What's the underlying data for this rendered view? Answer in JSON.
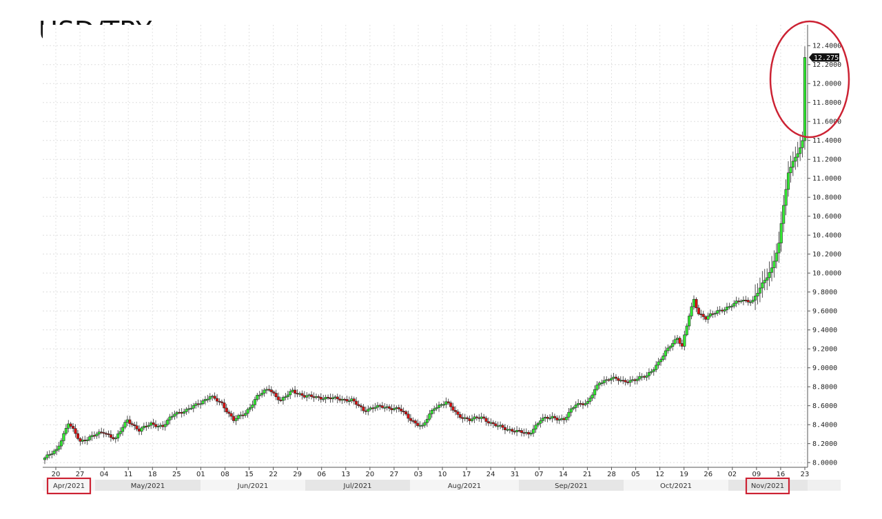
{
  "chart_data": {
    "type": "candlestick",
    "title": "USD/TRY",
    "ylim": [
      7.95,
      12.62
    ],
    "yticks": [
      "8.0000",
      "8.2000",
      "8.4000",
      "8.6000",
      "8.8000",
      "9.0000",
      "9.2000",
      "9.4000",
      "9.6000",
      "9.8000",
      "10.0000",
      "10.2000",
      "10.4000",
      "10.6000",
      "10.8000",
      "11.0000",
      "11.2000",
      "11.4000",
      "11.6000",
      "11.8000",
      "12.0000",
      "12.2000",
      "12.4000"
    ],
    "last_price_label": "12.2756",
    "x_day_ticks": [
      "20",
      "27",
      "04",
      "11",
      "18",
      "25",
      "01",
      "08",
      "15",
      "22",
      "29",
      "06",
      "13",
      "20",
      "27",
      "03",
      "10",
      "17",
      "24",
      "31",
      "07",
      "14",
      "21",
      "28",
      "05",
      "12",
      "19",
      "26",
      "02",
      "09",
      "16",
      "23"
    ],
    "months": [
      "Apr/2021",
      "May/2021",
      "Jun/2021",
      "Jul/2021",
      "Aug/2021",
      "Sep/2021",
      "Oct/2021",
      "Nov/2021"
    ],
    "highlighted_months": [
      "Apr/2021",
      "Nov/2021"
    ],
    "grid": true,
    "up_color": "#33ee33",
    "down_color": "#dd1111",
    "highlight_color": "#cc2233",
    "anchors": [
      [
        0,
        8.05
      ],
      [
        2,
        8.08
      ],
      [
        5,
        8.13
      ],
      [
        10,
        8.42
      ],
      [
        15,
        8.22
      ],
      [
        20,
        8.28
      ],
      [
        25,
        8.32
      ],
      [
        30,
        8.25
      ],
      [
        35,
        8.45
      ],
      [
        40,
        8.34
      ],
      [
        45,
        8.41
      ],
      [
        50,
        8.38
      ],
      [
        55,
        8.52
      ],
      [
        60,
        8.55
      ],
      [
        65,
        8.62
      ],
      [
        70,
        8.7
      ],
      [
        75,
        8.62
      ],
      [
        80,
        8.45
      ],
      [
        85,
        8.52
      ],
      [
        90,
        8.7
      ],
      [
        95,
        8.78
      ],
      [
        100,
        8.65
      ],
      [
        105,
        8.76
      ],
      [
        110,
        8.7
      ],
      [
        120,
        8.68
      ],
      [
        130,
        8.66
      ],
      [
        135,
        8.55
      ],
      [
        140,
        8.59
      ],
      [
        150,
        8.57
      ],
      [
        155,
        8.45
      ],
      [
        160,
        8.38
      ],
      [
        165,
        8.58
      ],
      [
        170,
        8.64
      ],
      [
        175,
        8.5
      ],
      [
        180,
        8.45
      ],
      [
        185,
        8.48
      ],
      [
        190,
        8.4
      ],
      [
        195,
        8.36
      ],
      [
        200,
        8.33
      ],
      [
        205,
        8.3
      ],
      [
        210,
        8.45
      ],
      [
        215,
        8.48
      ],
      [
        220,
        8.45
      ],
      [
        225,
        8.62
      ],
      [
        230,
        8.63
      ],
      [
        235,
        8.85
      ],
      [
        240,
        8.89
      ],
      [
        245,
        8.86
      ],
      [
        250,
        8.87
      ],
      [
        255,
        8.92
      ],
      [
        260,
        9.05
      ],
      [
        265,
        9.24
      ],
      [
        268,
        9.32
      ],
      [
        270,
        9.22
      ],
      [
        273,
        9.55
      ],
      [
        275,
        9.72
      ],
      [
        277,
        9.58
      ],
      [
        280,
        9.52
      ],
      [
        285,
        9.6
      ],
      [
        290,
        9.64
      ],
      [
        295,
        9.72
      ],
      [
        300,
        9.7
      ],
      [
        305,
        9.93
      ],
      [
        308,
        10.05
      ],
      [
        311,
        10.3
      ],
      [
        313,
        10.72
      ],
      [
        315,
        11.05
      ],
      [
        317,
        11.2
      ],
      [
        319,
        11.25
      ],
      [
        321,
        11.4
      ],
      [
        322,
        12.2756
      ]
    ]
  }
}
